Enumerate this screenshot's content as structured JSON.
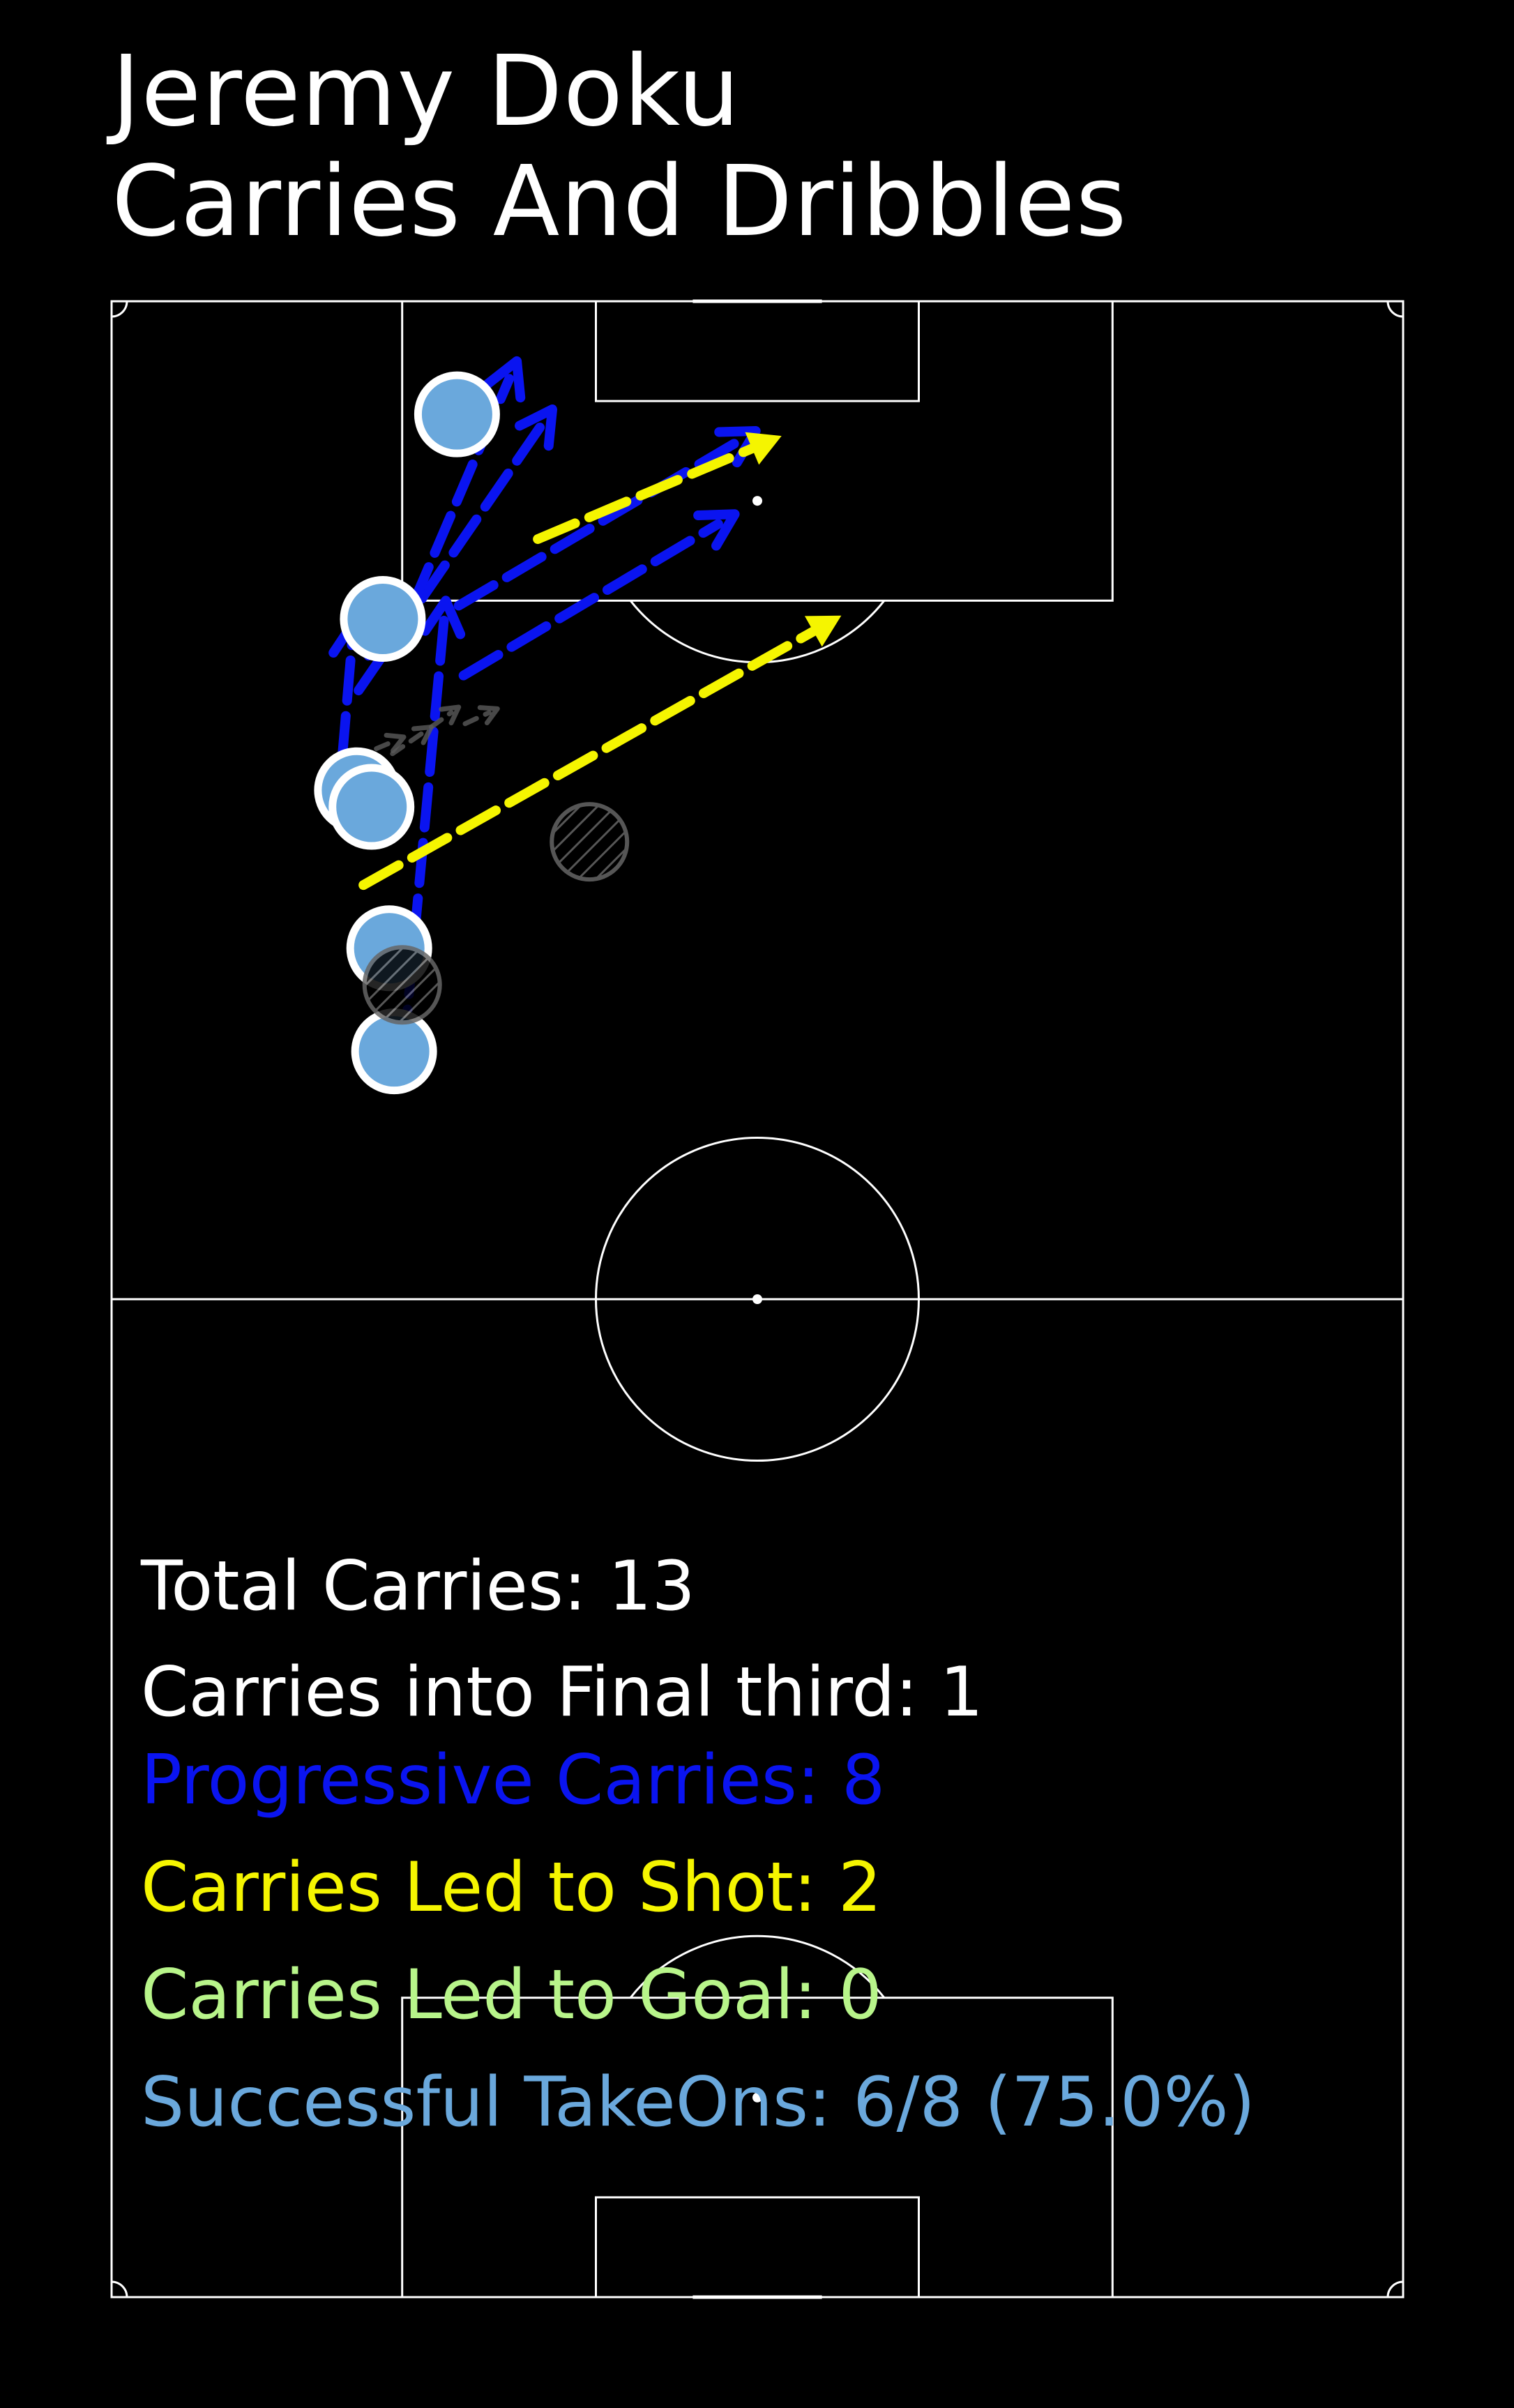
{
  "title": {
    "line1": "Jeremy Doku",
    "line2": "Carries And Dribbles"
  },
  "colors": {
    "background": "#000000",
    "pitch_lines": "#ffffff",
    "progressive": "#0a14f0",
    "led_to_shot": "#f5f500",
    "led_to_goal": "#b8f58a",
    "takeon_success": "#6aa8dc",
    "carry_other": "#5a5a5a"
  },
  "stats": {
    "total_carries": "Total Carries: 13",
    "final_third": "Carries into Final third: 1",
    "progressive": "Progressive Carries: 8",
    "led_to_shot": "Carries Led to Shot: 2",
    "led_to_goal": "Carries Led to Goal: 0",
    "takeons": "Successful TakeOns: 6/8 (75.0%)"
  },
  "chart_data": {
    "type": "scatter",
    "pitch": "vertical half-to-full pitch, attacking upward",
    "carries": [
      {
        "category": "progressive",
        "from": [
          75,
          18.1
        ],
        "to": [
          102,
          20.7
        ]
      },
      {
        "category": "progressive",
        "from": [
          89.3,
          14
        ],
        "to": [
          100.7,
          15
        ]
      },
      {
        "category": "progressive",
        "from": [
          96.6,
          15.3
        ],
        "to": [
          113.5,
          27.3
        ]
      },
      {
        "category": "progressive",
        "from": [
          98.7,
          17.3
        ],
        "to": [
          116.4,
          25.1
        ]
      },
      {
        "category": "progressive",
        "from": [
          101.7,
          21.5
        ],
        "to": [
          112.2,
          39.9
        ]
      },
      {
        "category": "progressive",
        "from": [
          90.6,
          15.8
        ],
        "to": [
          89.4,
          16.1
        ]
      },
      {
        "category": "progressive",
        "from": [
          97.5,
          21.8
        ],
        "to": [
          107.2,
          38.6
        ]
      },
      {
        "category": "led_to_shot",
        "from": [
          84.9,
          15.6
        ],
        "to": [
          101.1,
          45.2
        ]
      },
      {
        "category": "led_to_shot",
        "from": [
          105.7,
          26.4
        ],
        "to": [
          111.9,
          41.5
        ]
      },
      {
        "category": "other",
        "from": [
          92.8,
          17.4
        ],
        "to": [
          94.4,
          19.8
        ]
      },
      {
        "category": "other",
        "from": [
          94.4,
          19.8
        ],
        "to": [
          95.6,
          21.5
        ]
      },
      {
        "category": "other",
        "from": [
          94.6,
          21.9
        ],
        "to": [
          95.5,
          23.9
        ]
      },
      {
        "category": "other",
        "from": [
          93.1,
          16.4
        ],
        "to": [
          93.8,
          18.1
        ]
      }
    ],
    "takeons": [
      {
        "outcome": "successful",
        "at": [
          113.2,
          21.4
        ]
      },
      {
        "outcome": "successful",
        "at": [
          100.9,
          16.8
        ]
      },
      {
        "outcome": "successful",
        "at": [
          90.6,
          15.2
        ]
      },
      {
        "outcome": "successful",
        "at": [
          89.6,
          16.1
        ]
      },
      {
        "outcome": "successful",
        "at": [
          81.1,
          17.2
        ]
      },
      {
        "outcome": "successful",
        "at": [
          74.9,
          17.5
        ]
      },
      {
        "outcome": "unsuccessful",
        "at": [
          87.5,
          29.6
        ]
      },
      {
        "outcome": "unsuccessful",
        "at": [
          78.9,
          18.0
        ]
      }
    ]
  }
}
